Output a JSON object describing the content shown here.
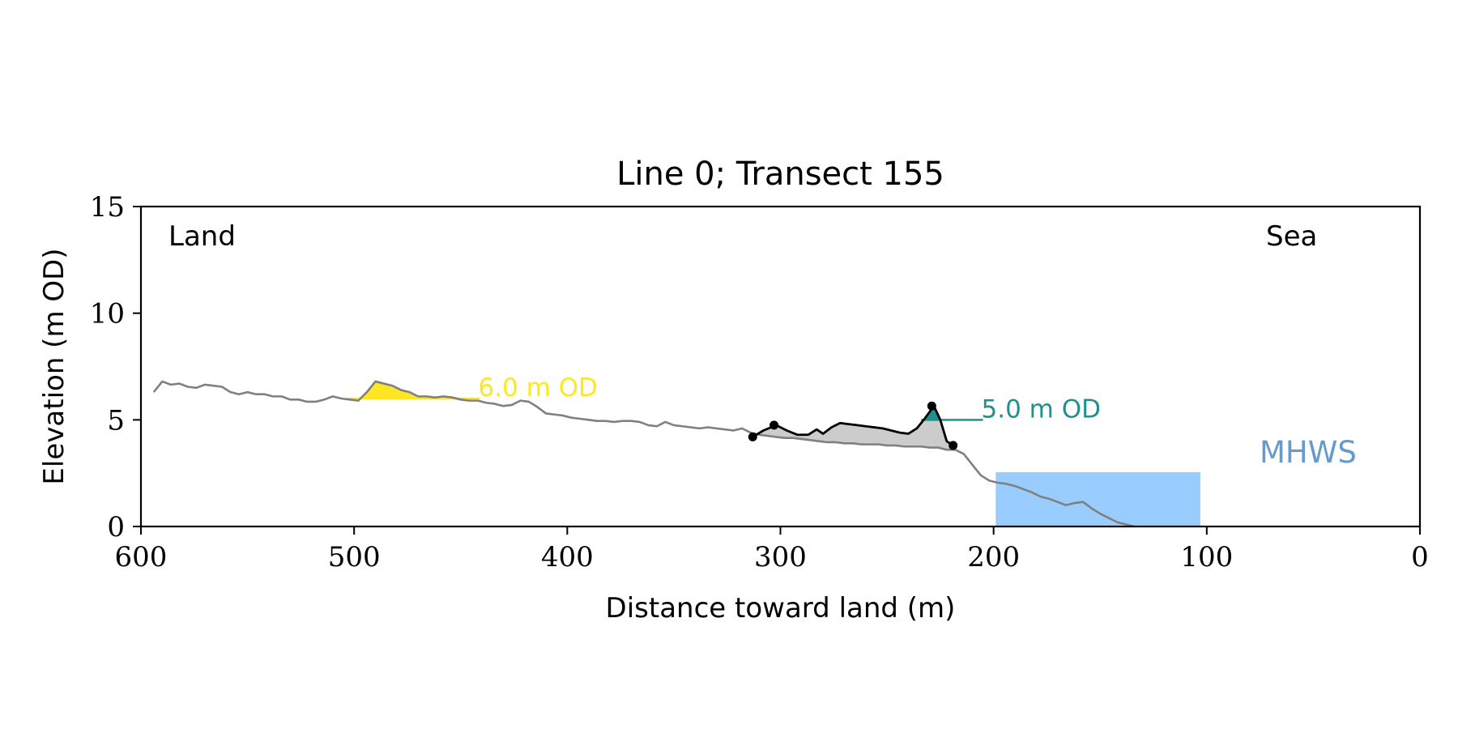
{
  "chart_data": {
    "type": "line",
    "title": "Line 0; Transect 155",
    "xlabel": "Distance toward land (m)",
    "ylabel": "Elevation (m OD)",
    "xlim": [
      600,
      0
    ],
    "ylim": [
      0,
      15
    ],
    "x_ticks": [
      600,
      500,
      400,
      300,
      200,
      100,
      0
    ],
    "y_ticks": [
      0,
      5,
      10,
      15
    ],
    "grid": false,
    "corner_labels": {
      "left": "Land",
      "right": "Sea"
    },
    "colors": {
      "profile": "#808080",
      "dune": "#000000",
      "dune_fill": "#cccccc",
      "landward_level": "#fde725",
      "seaward_level": "#21918c",
      "mhws": "#99ccff",
      "mhws_text": "#6699cc"
    },
    "profile": {
      "x": [
        594,
        590,
        586,
        582,
        578,
        574,
        570,
        566,
        562,
        558,
        554,
        550,
        546,
        542,
        538,
        534,
        530,
        526,
        522,
        518,
        514,
        510,
        506,
        502,
        498,
        494,
        490,
        486,
        482,
        478,
        474,
        470,
        466,
        462,
        458,
        454,
        450,
        446,
        442,
        438,
        434,
        430,
        426,
        422,
        418,
        414,
        410,
        406,
        402,
        398,
        394,
        390,
        386,
        382,
        378,
        374,
        370,
        366,
        362,
        358,
        354,
        350,
        346,
        342,
        338,
        334,
        330,
        326,
        322,
        318,
        314,
        310,
        306,
        302,
        298,
        294,
        290,
        286,
        282,
        278,
        274,
        270,
        266,
        262,
        258,
        254,
        250,
        246,
        242,
        238,
        234,
        230,
        226,
        222,
        218,
        214,
        210,
        206,
        202,
        198,
        194,
        190,
        186,
        182,
        178,
        174,
        170,
        166,
        162,
        158,
        154,
        150,
        146,
        142,
        138,
        134
      ],
      "y": [
        6.3,
        6.8,
        6.65,
        6.7,
        6.55,
        6.5,
        6.65,
        6.6,
        6.55,
        6.3,
        6.2,
        6.3,
        6.2,
        6.2,
        6.1,
        6.1,
        5.95,
        5.95,
        5.85,
        5.85,
        5.95,
        6.1,
        6.0,
        5.95,
        5.9,
        6.3,
        6.8,
        6.7,
        6.6,
        6.4,
        6.3,
        6.1,
        6.1,
        6.05,
        6.1,
        6.05,
        5.95,
        5.9,
        5.9,
        5.8,
        5.75,
        5.65,
        5.7,
        5.9,
        5.85,
        5.6,
        5.3,
        5.25,
        5.2,
        5.1,
        5.05,
        5.0,
        4.95,
        4.95,
        4.9,
        4.95,
        4.95,
        4.9,
        4.75,
        4.7,
        4.9,
        4.75,
        4.7,
        4.65,
        4.6,
        4.65,
        4.6,
        4.55,
        4.5,
        4.6,
        4.4,
        4.3,
        4.25,
        4.2,
        4.15,
        4.15,
        4.1,
        4.05,
        4.0,
        3.95,
        3.95,
        3.9,
        3.9,
        3.85,
        3.85,
        3.85,
        3.8,
        3.8,
        3.75,
        3.75,
        3.75,
        3.7,
        3.7,
        3.6,
        3.6,
        3.4,
        2.9,
        2.4,
        2.15,
        2.05,
        2.0,
        1.9,
        1.75,
        1.6,
        1.4,
        1.3,
        1.15,
        1.0,
        1.1,
        1.15,
        0.85,
        0.6,
        0.4,
        0.2,
        0.1,
        0.0
      ]
    },
    "dune_line": {
      "x": [
        313,
        308,
        302,
        297,
        292,
        287,
        283,
        280,
        276,
        272,
        268,
        264,
        260,
        256,
        252,
        248,
        244,
        240,
        236,
        232,
        228,
        225,
        222,
        219
      ],
      "y": [
        4.2,
        4.5,
        4.75,
        4.5,
        4.3,
        4.3,
        4.55,
        4.35,
        4.65,
        4.85,
        4.8,
        4.75,
        4.7,
        4.65,
        4.6,
        4.5,
        4.4,
        4.35,
        4.6,
        5.1,
        5.65,
        5.0,
        4.0,
        3.8
      ]
    },
    "dune_points": [
      {
        "x": 313,
        "y": 4.2
      },
      {
        "x": 303,
        "y": 4.75
      },
      {
        "x": 229,
        "y": 5.65
      },
      {
        "x": 219,
        "y": 3.8
      }
    ],
    "landward_level": {
      "label": "6.0 m OD",
      "elevation": 6.0,
      "x_from": 503,
      "x_to": 441
    },
    "seaward_level": {
      "label": "5.0 m OD",
      "elevation": 5.0,
      "x_from": 234,
      "x_to": 205
    },
    "mhws": {
      "label": "MHWS",
      "elevation": 2.55,
      "x_from": 199,
      "x_to": 103
    }
  }
}
